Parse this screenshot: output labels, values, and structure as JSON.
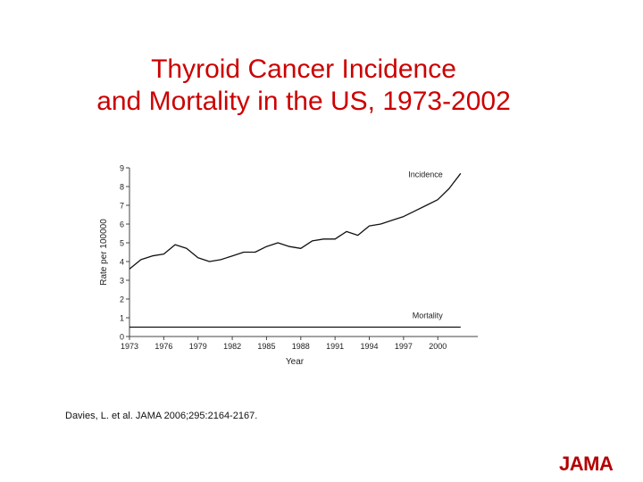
{
  "title": {
    "line1": "Thyroid Cancer Incidence",
    "line2": "and Mortality in the US, 1973-2002"
  },
  "citation": "Davies, L. et al. JAMA 2006;295:2164-2167.",
  "logo": "JAMA",
  "colors": {
    "title": "#cc0000",
    "logo": "#b30000",
    "line": "#111111"
  },
  "chart_data": {
    "type": "line",
    "title": "",
    "xlabel": "Year",
    "ylabel": "Rate per 100000",
    "xlim": [
      1973,
      2003.5
    ],
    "ylim": [
      0,
      9
    ],
    "x_ticks": [
      1973,
      1976,
      1979,
      1982,
      1985,
      1988,
      1991,
      1994,
      1997,
      2000
    ],
    "x_tick_labels": [
      "1973",
      "1976",
      "1979",
      "1982",
      "1985",
      "1988",
      "1991",
      "1994",
      "1997",
      "2000"
    ],
    "y_ticks": [
      0,
      1,
      2,
      3,
      4,
      5,
      6,
      7,
      8,
      9
    ],
    "y_tick_labels": [
      "0",
      "1",
      "2",
      "3",
      "4",
      "5",
      "6",
      "7",
      "8",
      "9"
    ],
    "grid": false,
    "x": [
      1973,
      1974,
      1975,
      1976,
      1977,
      1978,
      1979,
      1980,
      1981,
      1982,
      1983,
      1984,
      1985,
      1986,
      1987,
      1988,
      1989,
      1990,
      1991,
      1992,
      1993,
      1994,
      1995,
      1996,
      1997,
      1998,
      1999,
      2000,
      2001,
      2002
    ],
    "series": [
      {
        "name": "Incidence",
        "values": [
          3.6,
          4.1,
          4.3,
          4.4,
          4.9,
          4.7,
          4.2,
          4.0,
          4.1,
          4.3,
          4.5,
          4.5,
          4.8,
          5.0,
          4.8,
          4.7,
          5.1,
          5.2,
          5.2,
          5.6,
          5.4,
          5.9,
          6.0,
          6.2,
          6.4,
          6.7,
          7.0,
          7.3,
          7.9,
          8.7
        ]
      },
      {
        "name": "Mortality",
        "values": [
          0.5,
          0.5,
          0.5,
          0.5,
          0.5,
          0.5,
          0.5,
          0.5,
          0.5,
          0.5,
          0.5,
          0.5,
          0.5,
          0.5,
          0.5,
          0.5,
          0.5,
          0.5,
          0.5,
          0.5,
          0.5,
          0.5,
          0.5,
          0.5,
          0.5,
          0.5,
          0.5,
          0.5,
          0.5,
          0.5
        ]
      }
    ]
  }
}
